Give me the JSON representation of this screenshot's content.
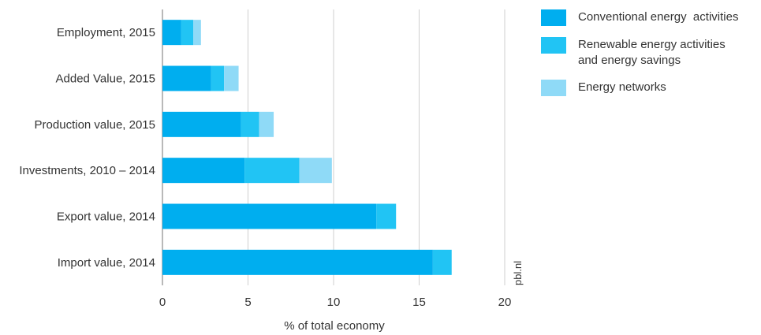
{
  "chart_data": {
    "type": "bar",
    "orientation": "horizontal",
    "stacked": true,
    "categories": [
      "Employment, 2015",
      "Added Value, 2015",
      "Production value, 2015",
      "Investments, 2010 – 2014",
      "Export value, 2014",
      "Import value, 2014"
    ],
    "series": [
      {
        "name": "Conventional energy  activities",
        "values": [
          1.1,
          2.85,
          4.6,
          4.8,
          12.5,
          15.8
        ],
        "color": "#00aeef"
      },
      {
        "name": "Renewable energy activities and energy savings",
        "values": [
          0.7,
          0.75,
          1.05,
          3.2,
          1.15,
          1.1
        ],
        "color": "#21c4f4"
      },
      {
        "name": "Energy networks",
        "values": [
          0.45,
          0.85,
          0.85,
          1.9,
          0,
          0
        ],
        "color": "#8fdaf7"
      }
    ],
    "legend_lines": [
      [
        "Conventional energy  activities"
      ],
      [
        "Renewable energy activities",
        "and energy savings"
      ],
      [
        "Energy networks"
      ]
    ],
    "xticks": [
      "0",
      "5",
      "10",
      "15",
      "20"
    ],
    "xlabel": "% of total economy",
    "xlim": [
      0,
      20
    ],
    "grid": true,
    "legend_position": "top-right",
    "watermark": "pbl.nl"
  }
}
